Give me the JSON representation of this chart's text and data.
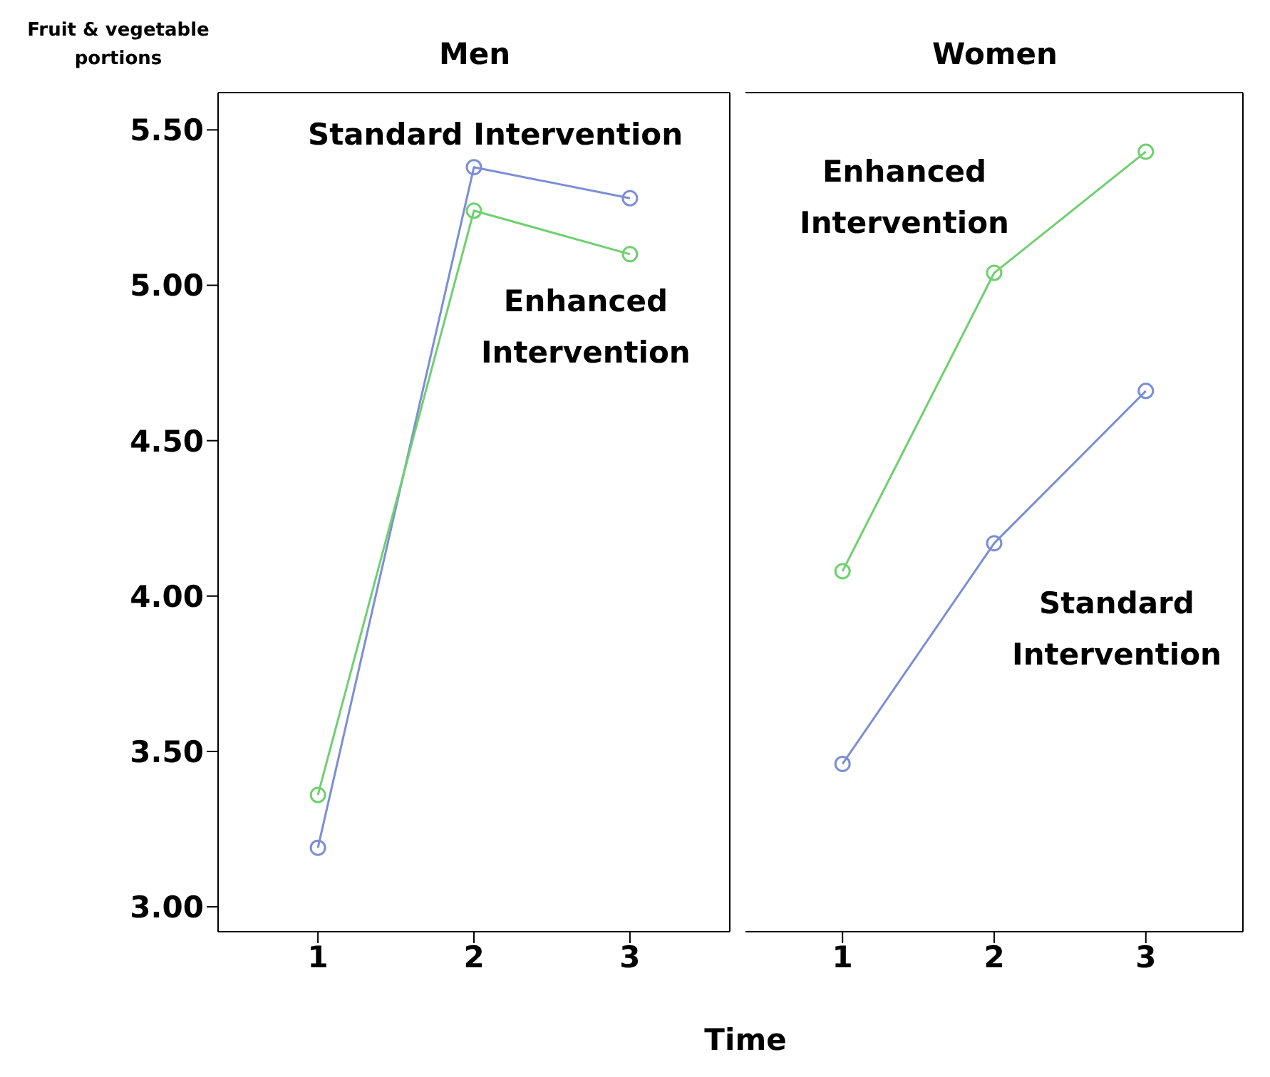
{
  "chart_data": [
    {
      "type": "line",
      "title": "Men",
      "ylabel": "Fruit & vegetable portions",
      "xlabel": "Time",
      "x": [
        1,
        2,
        3
      ],
      "xlim": [
        0.36,
        3.64
      ],
      "xticks": [
        1,
        2,
        3
      ],
      "ylim": [
        2.92,
        5.62
      ],
      "yticks": [
        {
          "value": 3,
          "label": "3.00"
        },
        {
          "value": 3.5,
          "label": "3.50"
        },
        {
          "value": 4,
          "label": "4.00"
        },
        {
          "value": 4.5,
          "label": "4.50"
        },
        {
          "value": 5,
          "label": "5.00"
        },
        {
          "value": 5.5,
          "label": "5.50"
        }
      ],
      "marker": "circle",
      "grid": false,
      "legend": false,
      "series": [
        {
          "name": "Standard Intervention",
          "color": "#7b8ed6",
          "values": [
            3.19,
            5.38,
            5.28
          ]
        },
        {
          "name": "Enhanced Intervention",
          "color": "#6fd06f",
          "values": [
            3.36,
            5.24,
            5.1
          ]
        }
      ]
    },
    {
      "type": "line",
      "title": "Women",
      "x": [
        1,
        2,
        3
      ],
      "xlim": [
        0.36,
        3.64
      ],
      "xticks": [
        1,
        2,
        3
      ],
      "ylim": [
        2.92,
        5.62
      ],
      "tick_labels": "x",
      "marker": "circle",
      "grid": false,
      "legend": false,
      "series": [
        {
          "name": "Standard Intervention",
          "color": "#7b8ed6",
          "values": [
            3.46,
            4.17,
            4.66
          ]
        },
        {
          "name": "Enhanced Intervention",
          "color": "#6fd06f",
          "values": [
            4.08,
            5.04,
            5.43
          ]
        }
      ]
    }
  ]
}
